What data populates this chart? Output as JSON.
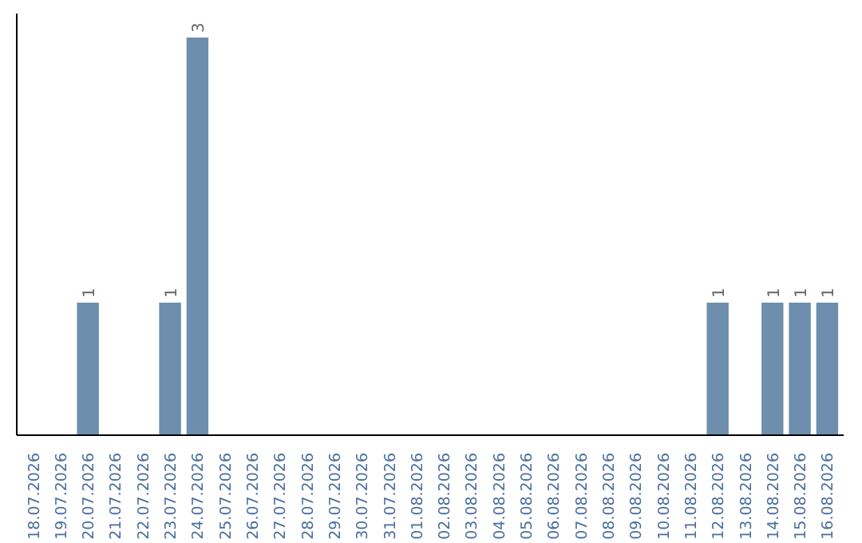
{
  "chart_data": {
    "type": "bar",
    "categories": [
      "18.07.2026",
      "19.07.2026",
      "20.07.2026",
      "21.07.2026",
      "22.07.2026",
      "23.07.2026",
      "24.07.2026",
      "25.07.2026",
      "26.07.2026",
      "27.07.2026",
      "28.07.2026",
      "29.07.2026",
      "30.07.2026",
      "31.07.2026",
      "01.08.2026",
      "02.08.2026",
      "03.08.2026",
      "04.08.2026",
      "05.08.2026",
      "06.08.2026",
      "07.08.2026",
      "08.08.2026",
      "09.08.2026",
      "10.08.2026",
      "11.08.2026",
      "12.08.2026",
      "13.08.2026",
      "14.08.2026",
      "15.08.2026",
      "16.08.2026"
    ],
    "values": [
      0,
      0,
      1,
      0,
      0,
      1,
      3,
      0,
      0,
      0,
      0,
      0,
      0,
      0,
      0,
      0,
      0,
      0,
      0,
      0,
      0,
      0,
      0,
      0,
      0,
      1,
      0,
      1,
      1,
      1
    ],
    "value_labels": [
      null,
      null,
      "1",
      null,
      null,
      "1",
      "3",
      null,
      null,
      null,
      null,
      null,
      null,
      null,
      null,
      null,
      null,
      null,
      null,
      null,
      null,
      null,
      null,
      null,
      null,
      "1",
      null,
      "1",
      "1",
      "1"
    ],
    "color": "#6d8fad",
    "grid": false,
    "tick_labels": "x"
  }
}
